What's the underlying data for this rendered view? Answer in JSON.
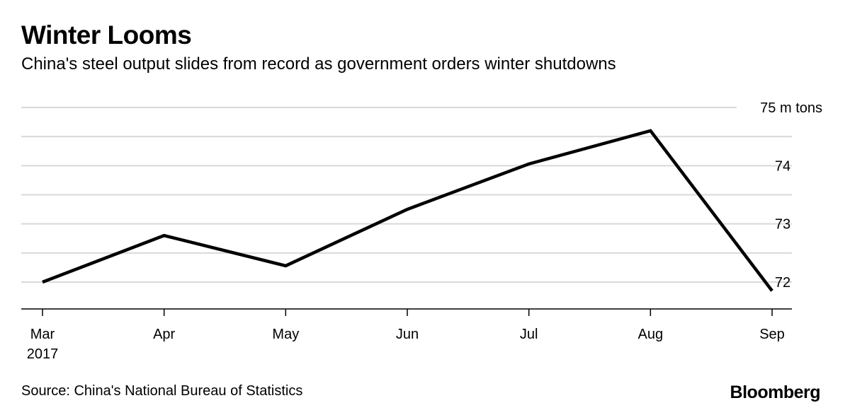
{
  "header": {
    "title": "Winter Looms",
    "subtitle": "China's steel output slides from record as government orders winter shutdowns"
  },
  "footer": {
    "source": "Source: China's National Bureau of Statistics",
    "logo_text": "Bloomberg"
  },
  "colors": {
    "line": "#000000",
    "grid": "#d9d9d9",
    "axis": "#000000",
    "text": "#000000"
  },
  "chart_data": {
    "type": "line",
    "title": "Winter Looms",
    "subtitle": "China's steel output slides from record as government orders winter shutdowns",
    "categories": [
      "Mar",
      "Apr",
      "May",
      "Jun",
      "Jul",
      "Aug",
      "Sep"
    ],
    "x_tick_labels": [
      "Mar\n2017",
      "Apr",
      "May",
      "Jun",
      "Jul",
      "Aug",
      "Sep"
    ],
    "series": [
      {
        "values": [
          72.0,
          72.8,
          72.28,
          73.25,
          74.03,
          74.6,
          71.85
        ]
      }
    ],
    "y_axis": {
      "position": "right",
      "unit": "m tons",
      "ylim": [
        71.5,
        75.0
      ],
      "ticks": [
        72,
        73,
        74,
        75
      ],
      "tick_labels": [
        "72",
        "73",
        "74",
        "75 m tons"
      ],
      "minor_gridlines": [
        72.5,
        73.5,
        74.5
      ]
    },
    "grid": true,
    "legend": "none",
    "source": "Source: China's National Bureau of Statistics"
  }
}
